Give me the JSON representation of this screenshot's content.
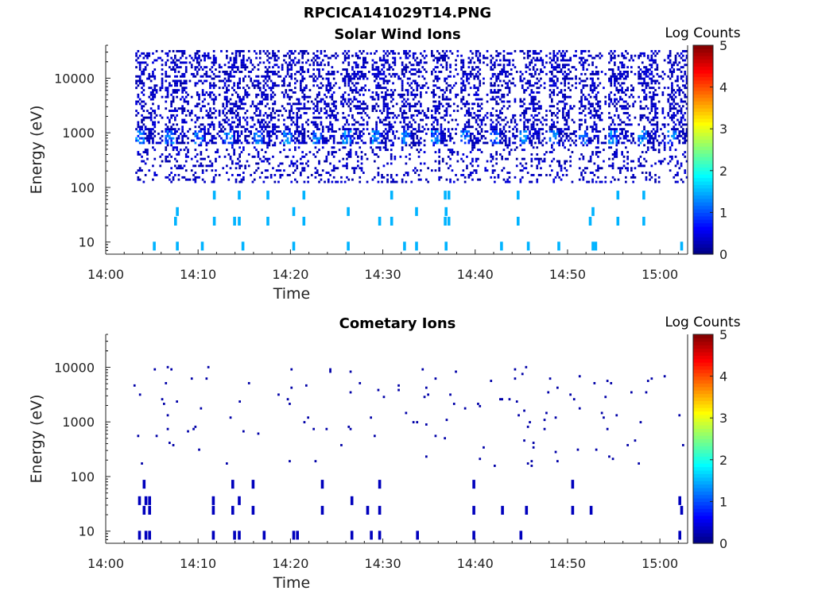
{
  "page": {
    "title": "RPCICA141029T14.PNG"
  },
  "chart_data": [
    {
      "type": "heatmap",
      "title": "Solar Wind Ions",
      "xlabel": "Time",
      "ylabel": "Energy (eV)",
      "y_scale": "log",
      "ylim": [
        6,
        40000
      ],
      "xlim": [
        "14:00",
        "15:03"
      ],
      "x_ticks": [
        "14:00",
        "14:10",
        "14:20",
        "14:30",
        "14:40",
        "14:50",
        "15:00"
      ],
      "y_ticks": [
        {
          "value": 10,
          "label": "10"
        },
        {
          "value": 100,
          "label": "100"
        },
        {
          "value": 1000,
          "label": "1000"
        },
        {
          "value": 10000,
          "label": "10000"
        }
      ],
      "colorbar": {
        "label": "Log Counts",
        "range": [
          0,
          5
        ],
        "ticks": [
          "0",
          "1",
          "2",
          "3",
          "4",
          "5"
        ],
        "colormap": "jet"
      },
      "sweep_start_minutes": [
        3.2,
        6.4,
        9.6,
        12.8,
        16.0,
        19.2,
        22.4,
        25.6,
        28.8,
        32.0,
        35.2,
        38.4,
        41.6,
        44.8,
        48.0,
        51.2,
        54.4,
        57.6,
        60.8
      ],
      "peak_energy_eV": 800,
      "peak_log_counts": 1.5,
      "low_energy_columns_minutes": [
        5.1,
        7.6,
        10.3,
        14.7,
        20.2,
        26.1,
        32.2,
        33.5,
        36.7,
        42.7,
        45.6,
        48.9,
        52.6,
        52.9,
        62.2
      ],
      "mid_energy_columns_minutes": [
        7.4,
        11.6,
        13.8,
        14.3,
        17.4,
        21.3,
        29.5,
        30.8,
        36.6,
        37.0,
        44.5,
        52.3,
        55.3,
        58.1
      ]
    },
    {
      "type": "heatmap",
      "title": "Cometary Ions",
      "xlabel": "Time",
      "ylabel": "Energy (eV)",
      "y_scale": "log",
      "ylim": [
        6,
        40000
      ],
      "xlim": [
        "14:00",
        "15:03"
      ],
      "x_ticks": [
        "14:00",
        "14:10",
        "14:20",
        "14:30",
        "14:40",
        "14:50",
        "15:00"
      ],
      "y_ticks": [
        {
          "value": 10,
          "label": "10"
        },
        {
          "value": 100,
          "label": "100"
        },
        {
          "value": 1000,
          "label": "1000"
        },
        {
          "value": 10000,
          "label": "10000"
        }
      ],
      "colorbar": {
        "label": "Log Counts",
        "range": [
          0,
          5
        ],
        "ticks": [
          "0",
          "1",
          "2",
          "3",
          "4",
          "5"
        ],
        "colormap": "jet"
      },
      "peak_log_counts": 0.3,
      "low_energy_columns_minutes": [
        3.5,
        4.2,
        4.6,
        11.5,
        13.8,
        14.3,
        17.0,
        20.2,
        20.6,
        26.5,
        28.6,
        29.5,
        33.6,
        39.7,
        44.8,
        62.0
      ],
      "mid_energy_columns_minutes": [
        4.0,
        4.6,
        11.5,
        13.6,
        15.8,
        23.3,
        28.2,
        29.5,
        39.7,
        42.8,
        45.4,
        50.4,
        52.4,
        62.2
      ]
    }
  ]
}
